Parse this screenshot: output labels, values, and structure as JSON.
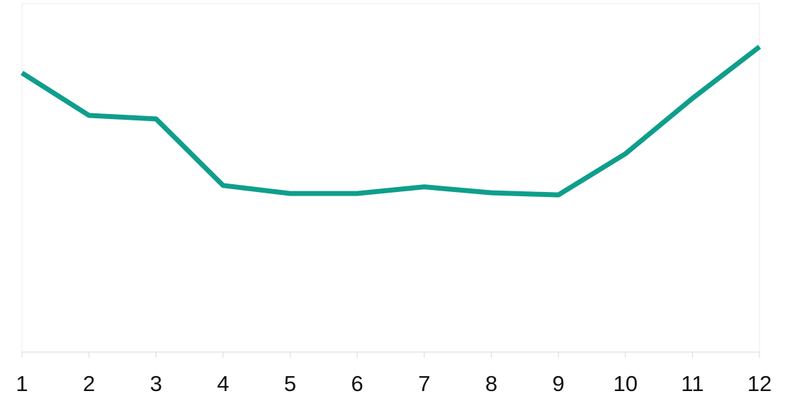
{
  "chart_data": {
    "type": "line",
    "x": [
      1,
      2,
      3,
      4,
      5,
      6,
      7,
      8,
      9,
      10,
      11,
      12
    ],
    "series": [
      {
        "color": "#0f9e8c",
        "values": [
          80.1,
          67.9,
          66.9,
          47.8,
          45.5,
          45.5,
          47.4,
          45.7,
          45.1,
          56.9,
          72.8,
          87.6
        ]
      }
    ],
    "xlim": [
      1,
      12
    ],
    "xticks": [
      1,
      2,
      3,
      4,
      5,
      6,
      7,
      8,
      9,
      10,
      11,
      12
    ],
    "ylim": [
      0,
      100
    ]
  }
}
